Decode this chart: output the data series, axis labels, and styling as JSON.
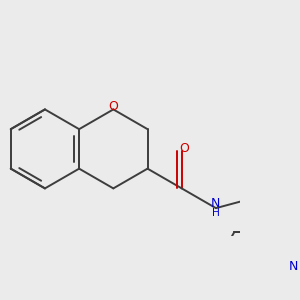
{
  "bg_color": "#ebebeb",
  "bond_color": "#3d3d3d",
  "oxygen_color": "#cc0000",
  "nitrogen_color": "#0000cc",
  "bond_width": 1.4,
  "figsize": [
    3.0,
    3.0
  ],
  "dpi": 100,
  "xlim": [
    -2.8,
    3.2
  ],
  "ylim": [
    -2.2,
    2.4
  ]
}
